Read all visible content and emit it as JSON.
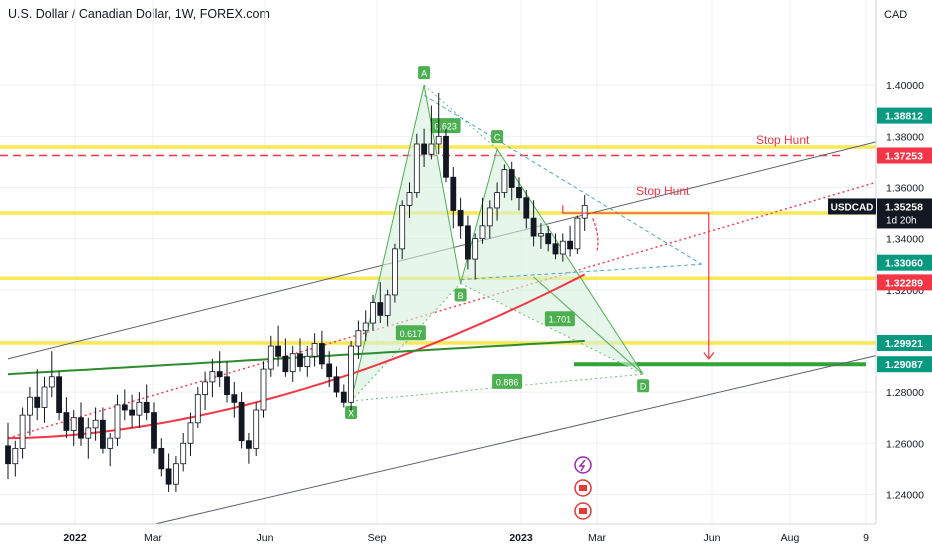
{
  "title": "U.S. Dollar / Canadian Dollar, 1W, FOREX.com",
  "currency": "CAD",
  "chart_data": {
    "type": "candlestick",
    "symbol": "USDCAD",
    "timeframe": "1W",
    "ylim": [
      1.23,
      1.42
    ],
    "y_ticks": [
      "1.40000",
      "1.38000",
      "1.36000",
      "1.34000",
      "1.32000",
      "1.30000",
      "1.28000",
      "1.26000",
      "1.24000"
    ],
    "x_ticks": [
      "2022",
      "Mar",
      "Jun",
      "Sep",
      "2023",
      "Mar",
      "Jun",
      "Aug",
      "9"
    ],
    "price_badges": [
      {
        "value": "1.38812",
        "color": "#089981"
      },
      {
        "value": "1.37253",
        "color": "#f23645"
      },
      {
        "value": "1.33060",
        "color": "#089981"
      },
      {
        "value": "1.32289",
        "color": "#f23645"
      },
      {
        "value": "1.29921",
        "color": "#089981"
      },
      {
        "value": "1.29087",
        "color": "#089981"
      }
    ],
    "last_price": {
      "symbol": "USDCAD",
      "value": "1.35258",
      "countdown": "1d 20h"
    },
    "candles": [
      [
        1.259,
        1.268,
        1.246,
        1.252
      ],
      [
        1.252,
        1.261,
        1.247,
        1.258
      ],
      [
        1.258,
        1.274,
        1.254,
        1.271
      ],
      [
        1.271,
        1.282,
        1.263,
        1.278
      ],
      [
        1.278,
        1.289,
        1.269,
        1.274
      ],
      [
        1.274,
        1.286,
        1.268,
        1.282
      ],
      [
        1.282,
        1.296,
        1.278,
        1.286
      ],
      [
        1.286,
        1.288,
        1.269,
        1.272
      ],
      [
        1.272,
        1.278,
        1.262,
        1.265
      ],
      [
        1.265,
        1.273,
        1.259,
        1.27
      ],
      [
        1.27,
        1.276,
        1.259,
        1.262
      ],
      [
        1.262,
        1.27,
        1.254,
        1.266
      ],
      [
        1.266,
        1.274,
        1.261,
        1.269
      ],
      [
        1.269,
        1.274,
        1.256,
        1.258
      ],
      [
        1.258,
        1.264,
        1.251,
        1.262
      ],
      [
        1.262,
        1.279,
        1.259,
        1.275
      ],
      [
        1.275,
        1.281,
        1.269,
        1.273
      ],
      [
        1.273,
        1.279,
        1.266,
        1.271
      ],
      [
        1.271,
        1.28,
        1.266,
        1.276
      ],
      [
        1.276,
        1.283,
        1.269,
        1.272
      ],
      [
        1.272,
        1.276,
        1.256,
        1.258
      ],
      [
        1.258,
        1.262,
        1.247,
        1.25
      ],
      [
        1.25,
        1.256,
        1.241,
        1.244
      ],
      [
        1.244,
        1.255,
        1.241,
        1.252
      ],
      [
        1.252,
        1.264,
        1.249,
        1.26
      ],
      [
        1.26,
        1.272,
        1.255,
        1.268
      ],
      [
        1.268,
        1.282,
        1.266,
        1.279
      ],
      [
        1.279,
        1.288,
        1.273,
        1.284
      ],
      [
        1.284,
        1.293,
        1.278,
        1.288
      ],
      [
        1.288,
        1.296,
        1.282,
        1.286
      ],
      [
        1.286,
        1.292,
        1.276,
        1.279
      ],
      [
        1.279,
        1.284,
        1.27,
        1.276
      ],
      [
        1.276,
        1.28,
        1.258,
        1.261
      ],
      [
        1.261,
        1.264,
        1.252,
        1.258
      ],
      [
        1.258,
        1.276,
        1.255,
        1.273
      ],
      [
        1.273,
        1.292,
        1.27,
        1.289
      ],
      [
        1.289,
        1.302,
        1.286,
        1.298
      ],
      [
        1.298,
        1.306,
        1.29,
        1.294
      ],
      [
        1.294,
        1.301,
        1.286,
        1.288
      ],
      [
        1.288,
        1.298,
        1.284,
        1.295
      ],
      [
        1.295,
        1.301,
        1.288,
        1.29
      ],
      [
        1.29,
        1.298,
        1.286,
        1.294
      ],
      [
        1.294,
        1.303,
        1.29,
        1.299
      ],
      [
        1.299,
        1.304,
        1.289,
        1.291
      ],
      [
        1.291,
        1.296,
        1.282,
        1.286
      ],
      [
        1.286,
        1.29,
        1.278,
        1.28
      ],
      [
        1.28,
        1.283,
        1.274,
        1.276
      ],
      [
        1.276,
        1.3,
        1.273,
        1.298
      ],
      [
        1.298,
        1.308,
        1.293,
        1.304
      ],
      [
        1.304,
        1.312,
        1.3,
        1.307
      ],
      [
        1.307,
        1.318,
        1.304,
        1.315
      ],
      [
        1.315,
        1.323,
        1.307,
        1.31
      ],
      [
        1.31,
        1.32,
        1.306,
        1.318
      ],
      [
        1.318,
        1.338,
        1.315,
        1.336
      ],
      [
        1.336,
        1.355,
        1.332,
        1.353
      ],
      [
        1.353,
        1.362,
        1.348,
        1.358
      ],
      [
        1.358,
        1.381,
        1.356,
        1.377
      ],
      [
        1.377,
        1.383,
        1.368,
        1.373
      ],
      [
        1.373,
        1.392,
        1.371,
        1.377
      ],
      [
        1.377,
        1.397,
        1.373,
        1.38
      ],
      [
        1.38,
        1.383,
        1.362,
        1.364
      ],
      [
        1.364,
        1.368,
        1.344,
        1.351
      ],
      [
        1.351,
        1.356,
        1.34,
        1.345
      ],
      [
        1.345,
        1.349,
        1.328,
        1.332
      ],
      [
        1.332,
        1.342,
        1.324,
        1.34
      ],
      [
        1.34,
        1.356,
        1.338,
        1.345
      ],
      [
        1.345,
        1.355,
        1.34,
        1.352
      ],
      [
        1.352,
        1.362,
        1.347,
        1.358
      ],
      [
        1.358,
        1.369,
        1.356,
        1.367
      ],
      [
        1.367,
        1.37,
        1.355,
        1.36
      ],
      [
        1.36,
        1.364,
        1.351,
        1.356
      ],
      [
        1.356,
        1.359,
        1.344,
        1.348
      ],
      [
        1.348,
        1.355,
        1.337,
        1.341
      ],
      [
        1.341,
        1.346,
        1.336,
        1.342
      ],
      [
        1.342,
        1.345,
        1.335,
        1.338
      ],
      [
        1.338,
        1.342,
        1.332,
        1.334
      ],
      [
        1.334,
        1.342,
        1.331,
        1.339
      ],
      [
        1.339,
        1.345,
        1.333,
        1.336
      ],
      [
        1.336,
        1.349,
        1.334,
        1.348
      ],
      [
        1.348,
        1.357,
        1.343,
        1.353
      ]
    ],
    "moving_averages": [
      {
        "color": "#f23645",
        "start": 1.262,
        "end": 1.326
      },
      {
        "color": "#2e8b2e",
        "start": 1.287,
        "end": 1.3
      }
    ],
    "pattern_points": [
      {
        "label": "X",
        "price": 1.2765
      },
      {
        "label": "A",
        "price": 1.4
      },
      {
        "label": "B",
        "price": 1.3225
      },
      {
        "label": "C",
        "price": 1.375
      },
      {
        "label": "D",
        "price": 1.287
      }
    ],
    "ratios": [
      "0.623",
      "0.617",
      "1.701",
      "0.886"
    ],
    "annotations": [
      "Stop Hunt",
      "Stop Hunt"
    ],
    "levels": {
      "yellow": [
        1.3758,
        1.35,
        1.3245,
        1.2992
      ],
      "red_dashed": 1.3725,
      "green_target": 1.2909
    },
    "grid": true
  }
}
